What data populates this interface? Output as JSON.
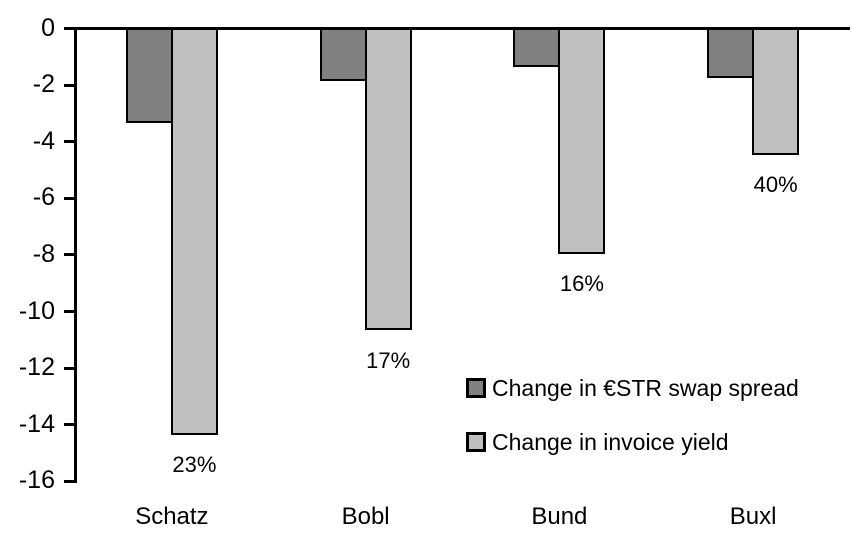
{
  "chart_data": {
    "type": "bar",
    "title": "",
    "xlabel": "",
    "ylabel": "",
    "categories": [
      "Schatz",
      "Bobl",
      "Bund",
      "Buxl"
    ],
    "series": [
      {
        "name": "Change in €STR swap spread",
        "color": "#808080",
        "border_color": "#000000",
        "values": [
          -3.3,
          -1.8,
          -1.3,
          -1.7
        ]
      },
      {
        "name": "Change in invoice yield",
        "color": "#BFBFBF",
        "border_color": "#000000",
        "values": [
          -14.3,
          -10.6,
          -7.9,
          -4.4
        ]
      }
    ],
    "bar_labels": {
      "attached_series": "Change in invoice yield",
      "position": "below-bar",
      "values": [
        "23%",
        "17%",
        "16%",
        "40%"
      ]
    },
    "yaxis": {
      "min": -16,
      "max": 0,
      "tick_step": 2,
      "tick_labels": [
        "0",
        "-2",
        "-4",
        "-6",
        "-8",
        "-10",
        "-12",
        "-14",
        "-16"
      ]
    },
    "legend": {
      "position": "inside-center-right",
      "entries": [
        "Change in €STR swap spread",
        "Change in invoice yield"
      ]
    },
    "grid": false,
    "colors": {
      "axis": "#000000",
      "text": "#000000",
      "background": "#FFFFFF"
    }
  }
}
